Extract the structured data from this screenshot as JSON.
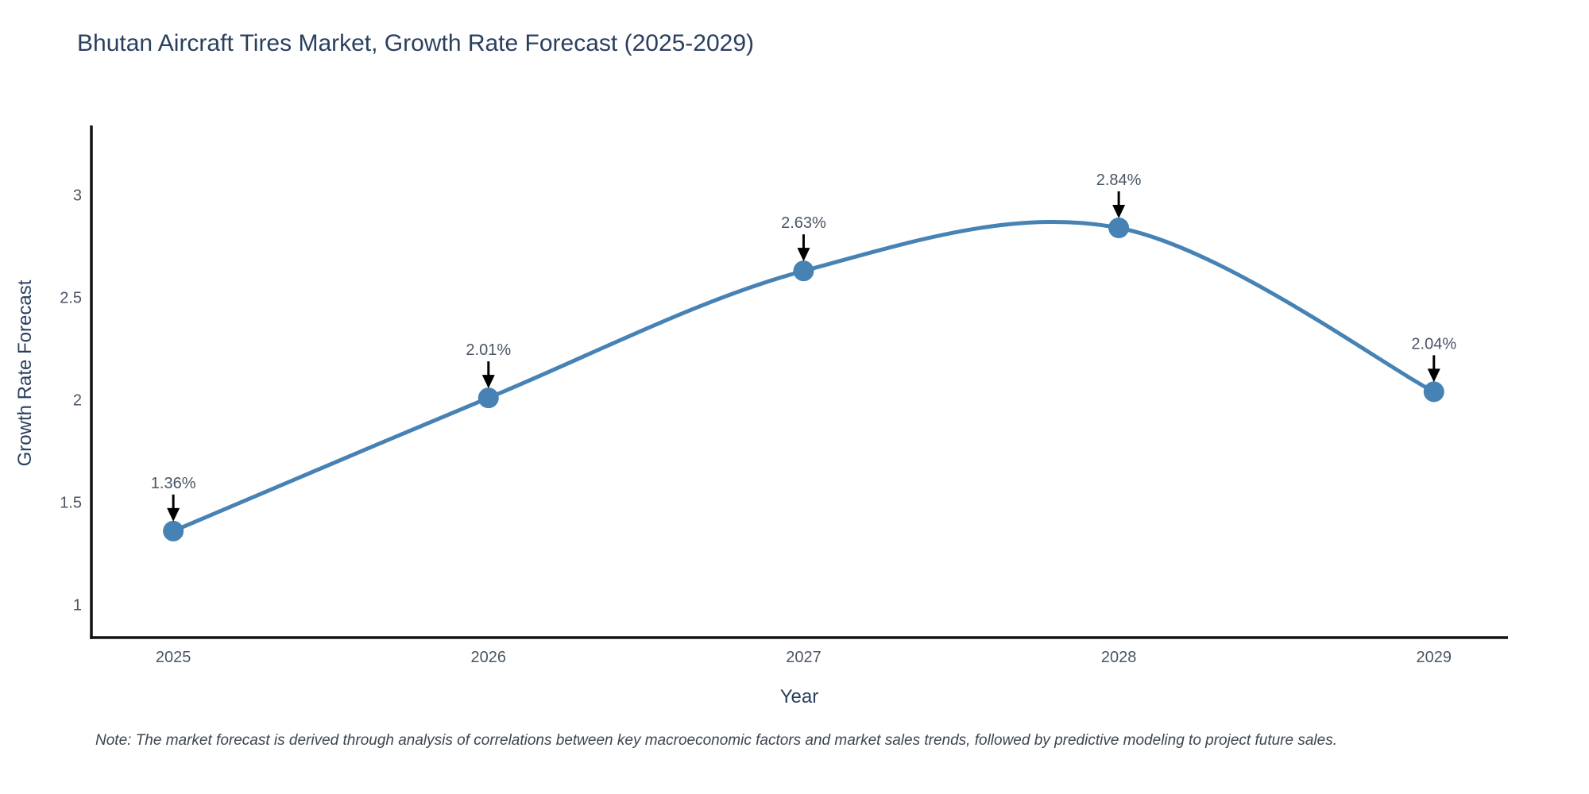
{
  "note": "Note: The market forecast is derived through analysis of correlations between key macroeconomic factors and market sales trends, followed by predictive modeling to project future sales.",
  "chart_data": {
    "type": "line",
    "title": "Bhutan Aircraft Tires Market, Growth Rate Forecast (2025-2029)",
    "xlabel": "Year",
    "ylabel": "Growth Rate Forecast",
    "x": [
      2025,
      2026,
      2027,
      2028,
      2029
    ],
    "y": [
      1.36,
      2.01,
      2.63,
      2.84,
      2.04
    ],
    "point_labels": [
      "1.36%",
      "2.01%",
      "2.63%",
      "2.84%",
      "2.04%"
    ],
    "x_tick_labels": [
      "2025",
      "2026",
      "2027",
      "2028",
      "2029"
    ],
    "y_tick_values": [
      1,
      1.5,
      2,
      2.5,
      3
    ],
    "y_tick_labels": [
      "1",
      "1.5",
      "2",
      "2.5",
      "3"
    ],
    "xlim": [
      2024.74,
      2029.235
    ],
    "ylim": [
      0.84,
      3.34
    ],
    "grid": false,
    "legend": false,
    "line_shape": "spline",
    "colors": {
      "line": "#4682B4",
      "marker": "#4682B4",
      "axis": "#111111",
      "annotation_arrow": "#000000",
      "annotation_text": "#4a5564",
      "tick_text": "#4a5564",
      "title_text": "#2a3f5f"
    }
  }
}
